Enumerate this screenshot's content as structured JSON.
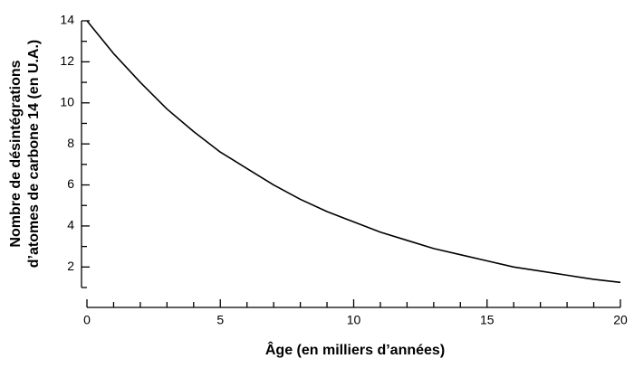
{
  "chart_data": {
    "type": "line",
    "xlabel": "Âge (en milliers d’années)",
    "ylabel": [
      "Nombre de désintégrations",
      "d’atomes de carbone 14 (en U.A.)"
    ],
    "x": [
      0,
      1,
      2,
      3,
      4,
      5,
      6,
      7,
      8,
      9,
      10,
      11,
      12,
      13,
      14,
      15,
      16,
      17,
      18,
      19,
      20
    ],
    "series": [
      {
        "color": "#000000",
        "values": [
          14,
          12.4,
          11,
          9.7,
          8.6,
          7.6,
          6.8,
          6,
          5.3,
          4.7,
          4.2,
          3.7,
          3.3,
          2.9,
          2.6,
          2.3,
          2,
          1.8,
          1.6,
          1.4,
          1.25
        ]
      }
    ],
    "xlim": [
      0,
      20
    ],
    "xticks": [
      0,
      5,
      10,
      15,
      20
    ],
    "xminorticks": [
      1,
      2,
      3,
      4,
      6,
      7,
      8,
      9,
      11,
      12,
      13,
      14,
      16,
      17,
      18,
      19
    ],
    "ylim": [
      1,
      14
    ],
    "yticks": [
      2,
      4,
      6,
      8,
      10,
      12,
      14
    ],
    "yminorticks": [
      1,
      3,
      5,
      7,
      9,
      11,
      13
    ]
  }
}
